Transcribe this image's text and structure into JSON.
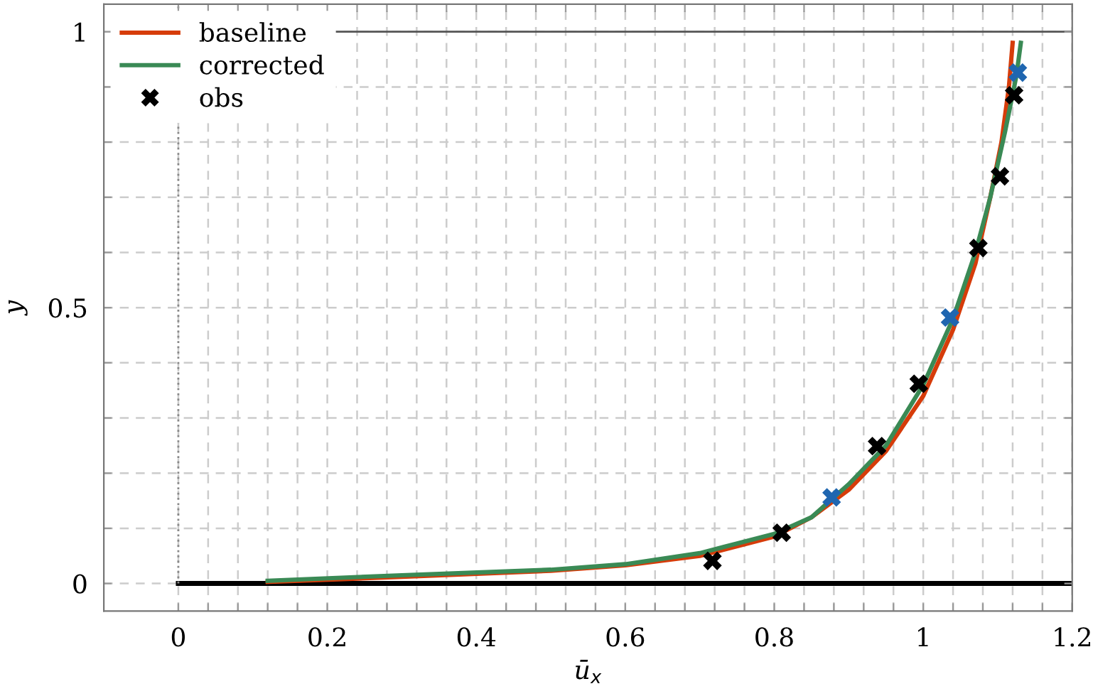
{
  "chart_data": {
    "type": "line",
    "xlabel": "ū$_{x}$",
    "ylabel": "y",
    "xlim": [
      -0.1,
      1.2
    ],
    "ylim": [
      -0.05,
      1.05
    ],
    "xticks": [
      0,
      {
        "value": 0.04,
        "label": null
      },
      {
        "value": 0.08,
        "label": null
      },
      {
        "value": 0.12,
        "label": null
      },
      {
        "value": 0.16,
        "label": null
      },
      0.2,
      {
        "value": 0.24,
        "label": null
      },
      {
        "value": 0.28,
        "label": null
      },
      {
        "value": 0.32,
        "label": null
      },
      {
        "value": 0.36,
        "label": null
      },
      0.4,
      {
        "value": 0.44,
        "label": null
      },
      {
        "value": 0.48,
        "label": null
      },
      {
        "value": 0.52,
        "label": null
      },
      {
        "value": 0.56,
        "label": null
      },
      0.6,
      {
        "value": 0.64,
        "label": null
      },
      {
        "value": 0.68,
        "label": null
      },
      {
        "value": 0.72,
        "label": null
      },
      {
        "value": 0.76,
        "label": null
      },
      0.8,
      {
        "value": 0.84,
        "label": null
      },
      {
        "value": 0.88,
        "label": null
      },
      {
        "value": 0.92,
        "label": null
      },
      {
        "value": 0.96,
        "label": null
      },
      1,
      {
        "value": 1.04,
        "label": null
      },
      {
        "value": 1.08,
        "label": null
      },
      {
        "value": 1.12,
        "label": null
      },
      {
        "value": 1.16,
        "label": null
      },
      1.2
    ],
    "yticks": [
      0,
      {
        "value": 0.1,
        "label": null
      },
      {
        "value": 0.2,
        "label": null
      },
      {
        "value": 0.3,
        "label": null
      },
      {
        "value": 0.4,
        "label": null
      },
      0.5,
      {
        "value": 0.6,
        "label": null
      },
      {
        "value": 0.7,
        "label": null
      },
      {
        "value": 0.8,
        "label": null
      },
      {
        "value": 0.9,
        "label": null
      },
      1
    ],
    "grid": true,
    "legend": "top left",
    "ref_lines": [
      {
        "axis": "y",
        "value": 0,
        "color": "#000000",
        "line_style": "solid"
      },
      {
        "axis": "y",
        "value": 1,
        "color": "#555555",
        "line_style": "solid"
      },
      {
        "axis": "x",
        "value": 0,
        "color": "#888888",
        "line_style": "dotted"
      }
    ],
    "series": [
      {
        "name": "baseline",
        "color": "#d63c0a",
        "marker": "none",
        "x": [
          0.12,
          0.3,
          0.5,
          0.6,
          0.7,
          0.8,
          0.85,
          0.9,
          0.95,
          1.0,
          1.04,
          1.07,
          1.09,
          1.105,
          1.115,
          1.12
        ],
        "values": [
          0.003,
          0.012,
          0.023,
          0.033,
          0.05,
          0.085,
          0.12,
          0.17,
          0.24,
          0.34,
          0.46,
          0.58,
          0.7,
          0.8,
          0.9,
          0.98
        ]
      },
      {
        "name": "corrected",
        "color": "#3a8a55",
        "marker": "none",
        "x": [
          0.12,
          0.3,
          0.5,
          0.6,
          0.7,
          0.8,
          0.85,
          0.9,
          0.95,
          1.0,
          1.04,
          1.07,
          1.09,
          1.11,
          1.125,
          1.131
        ],
        "values": [
          0.005,
          0.015,
          0.025,
          0.035,
          0.055,
          0.09,
          0.12,
          0.18,
          0.25,
          0.36,
          0.48,
          0.6,
          0.7,
          0.82,
          0.92,
          0.98
        ]
      },
      {
        "name": "obs",
        "type": "scatter",
        "color": "#000000",
        "marker": "cross",
        "x": [
          0.717,
          0.81,
          0.877,
          0.938,
          0.994,
          1.036,
          1.074,
          1.103,
          1.122,
          1.127
        ],
        "values": [
          0.041,
          0.092,
          0.156,
          0.249,
          0.362,
          0.482,
          0.608,
          0.738,
          0.885,
          0.926
        ],
        "colors": [
          "#000000",
          "#000000",
          "#1f66b0",
          "#000000",
          "#000000",
          "#1f66b0",
          "#000000",
          "#000000",
          "#000000",
          "#1f66b0"
        ]
      }
    ]
  }
}
